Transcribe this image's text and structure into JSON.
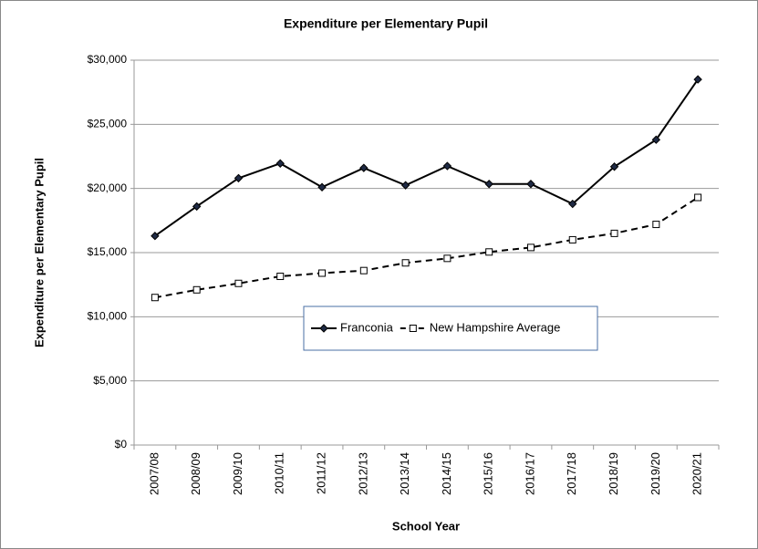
{
  "chart_data": {
    "type": "line",
    "title": "Expenditure per Elementary Pupil",
    "x_label": "School Year",
    "y_label": "Expenditure per Elementary Pupil",
    "categories": [
      "2007/08",
      "2008/09",
      "2009/10",
      "2010/11",
      "2011/12",
      "2012/13",
      "2013/14",
      "2014/15",
      "2015/16",
      "2016/17",
      "2017/18",
      "2018/19",
      "2019/20",
      "2020/21"
    ],
    "series": [
      {
        "name": "Franconia",
        "color": "#000000",
        "marker": "diamond",
        "dashed": false,
        "values": [
          16300,
          18600,
          20800,
          21950,
          20100,
          21600,
          20250,
          21750,
          20350,
          20350,
          18800,
          21700,
          23800,
          28500
        ]
      },
      {
        "name": "New Hampshire Average",
        "color": "#000000",
        "marker": "square",
        "dashed": true,
        "values": [
          11500,
          12100,
          12600,
          13150,
          13400,
          13600,
          14200,
          14550,
          15050,
          15400,
          16000,
          16500,
          17200,
          19300
        ]
      }
    ],
    "ylim": [
      0,
      30000
    ],
    "yticks": [
      {
        "value": 0,
        "label": "$0"
      },
      {
        "value": 5000,
        "label": "$5,000"
      },
      {
        "value": 10000,
        "label": "$10,000"
      },
      {
        "value": 15000,
        "label": "$15,000"
      },
      {
        "value": 20000,
        "label": "$20,000"
      },
      {
        "value": 25000,
        "label": "$25,000"
      },
      {
        "value": 30000,
        "label": "$30,000"
      }
    ],
    "grid": true,
    "legend": "center"
  }
}
